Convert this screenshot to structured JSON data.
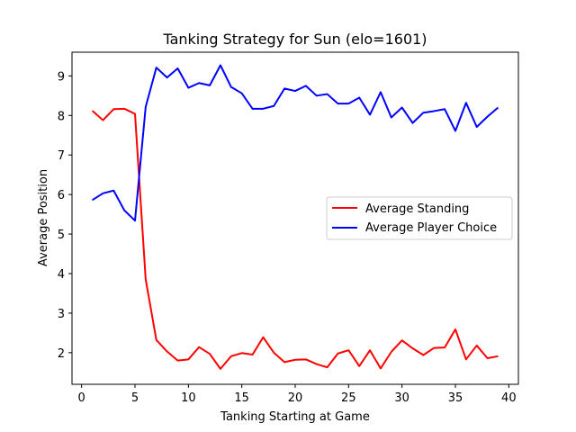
{
  "chart_data": {
    "type": "line",
    "title": "Tanking Strategy for Sun (elo=1601)",
    "xlabel": "Tanking Starting at Game",
    "ylabel": "Average Position",
    "xlim": [
      -0.9,
      40.9
    ],
    "ylim": [
      1.2,
      9.6
    ],
    "xticks": [
      0,
      5,
      10,
      15,
      20,
      25,
      30,
      35,
      40
    ],
    "yticks": [
      2,
      3,
      4,
      5,
      6,
      7,
      8,
      9
    ],
    "grid": false,
    "legend_position": "center-right",
    "x": [
      1,
      2,
      3,
      4,
      5,
      6,
      7,
      8,
      9,
      10,
      11,
      12,
      13,
      14,
      15,
      16,
      17,
      18,
      19,
      20,
      21,
      22,
      23,
      24,
      25,
      26,
      27,
      28,
      29,
      30,
      31,
      32,
      33,
      34,
      35,
      36,
      37,
      38,
      39
    ],
    "series": [
      {
        "name": "Average Standing",
        "color": "#ff0000",
        "values": [
          8.12,
          7.88,
          8.16,
          8.17,
          8.04,
          3.85,
          2.32,
          2.03,
          1.8,
          1.83,
          2.14,
          1.97,
          1.59,
          1.91,
          1.99,
          1.95,
          2.39,
          2.0,
          1.76,
          1.82,
          1.83,
          1.71,
          1.63,
          1.98,
          2.06,
          1.66,
          2.06,
          1.6,
          2.02,
          2.31,
          2.11,
          1.94,
          2.12,
          2.13,
          2.59,
          1.83,
          2.18,
          1.86,
          1.91
        ]
      },
      {
        "name": "Average Player Choice",
        "color": "#0000ff",
        "values": [
          5.86,
          6.03,
          6.1,
          5.6,
          5.34,
          8.22,
          9.21,
          8.96,
          9.19,
          8.7,
          8.82,
          8.76,
          9.27,
          8.72,
          8.56,
          8.17,
          8.17,
          8.24,
          8.68,
          8.62,
          8.75,
          8.5,
          8.54,
          8.3,
          8.3,
          8.45,
          8.02,
          8.59,
          7.95,
          8.2,
          7.81,
          8.07,
          8.11,
          8.16,
          7.61,
          8.32,
          7.71,
          7.97,
          8.2
        ]
      }
    ]
  }
}
